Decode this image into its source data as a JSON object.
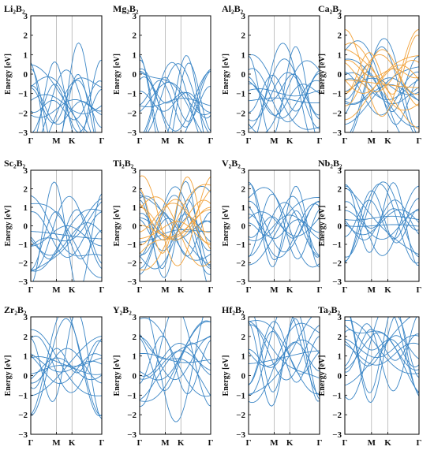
{
  "colors": {
    "series_up": "#3b86c6",
    "series_down": "#f2a23a"
  },
  "chart_data": [
    {
      "type": "line",
      "title": "Li₂B₂",
      "ylabel": "Energy [eV]",
      "ylim": [
        -3,
        3
      ],
      "yticks": [
        "3",
        "2",
        "1",
        "0",
        "-1",
        "-2",
        "-3"
      ],
      "xticks": [
        "Γ",
        "M",
        "K",
        "Γ"
      ],
      "grid": false,
      "spin_polarized": false
    },
    {
      "type": "line",
      "title": "Mg₂B₂",
      "ylabel": "Energy [eV]",
      "ylim": [
        -3,
        3
      ],
      "yticks": [
        "3",
        "2",
        "1",
        "0",
        "-1",
        "-2",
        "-3"
      ],
      "xticks": [
        "Γ",
        "M",
        "K",
        "Γ"
      ],
      "grid": false,
      "spin_polarized": false
    },
    {
      "type": "line",
      "title": "Al₂B₂",
      "ylabel": "Energy [eV]",
      "ylim": [
        -3,
        3
      ],
      "yticks": [
        "3",
        "2",
        "1",
        "0",
        "-1",
        "-2",
        "-3"
      ],
      "xticks": [
        "Γ",
        "M",
        "K",
        "Γ"
      ],
      "grid": false,
      "spin_polarized": false
    },
    {
      "type": "line",
      "title": "Ca₂B₂",
      "ylabel": "Energy [eV]",
      "ylim": [
        -3,
        3
      ],
      "yticks": [
        "3",
        "2",
        "1",
        "0",
        "-1",
        "-2",
        "-3"
      ],
      "xticks": [
        "Γ",
        "M",
        "K",
        "Γ"
      ],
      "grid": false,
      "spin_polarized": true
    },
    {
      "type": "line",
      "title": "Sc₂B₂",
      "ylabel": "Energy [eV]",
      "ylim": [
        -3,
        3
      ],
      "yticks": [
        "3",
        "2",
        "1",
        "0",
        "-1",
        "-2",
        "-3"
      ],
      "xticks": [
        "Γ",
        "M",
        "K",
        "Γ"
      ],
      "grid": false,
      "spin_polarized": false
    },
    {
      "type": "line",
      "title": "Ti₂B₂",
      "ylabel": "Energy [eV]",
      "ylim": [
        -3,
        3
      ],
      "yticks": [
        "3",
        "2",
        "1",
        "0",
        "-1",
        "-2",
        "-3"
      ],
      "xticks": [
        "Γ",
        "M",
        "K",
        "Γ"
      ],
      "grid": false,
      "spin_polarized": true
    },
    {
      "type": "line",
      "title": "V₂B₂",
      "ylabel": "Energy [eV]",
      "ylim": [
        -3,
        3
      ],
      "yticks": [
        "3",
        "2",
        "1",
        "0",
        "-1",
        "-2",
        "-3"
      ],
      "xticks": [
        "Γ",
        "M",
        "K",
        "Γ"
      ],
      "grid": false,
      "spin_polarized": false
    },
    {
      "type": "line",
      "title": "Nb₂B₂",
      "ylabel": "Energy [eV]",
      "ylim": [
        -3,
        3
      ],
      "yticks": [
        "3",
        "2",
        "1",
        "0",
        "-1",
        "-2",
        "-3"
      ],
      "xticks": [
        "Γ",
        "M",
        "K",
        "Γ"
      ],
      "grid": false,
      "spin_polarized": false
    },
    {
      "type": "line",
      "title": "Zr₂B₂",
      "ylabel": "Energy [eV]",
      "ylim": [
        -3,
        3
      ],
      "yticks": [
        "3",
        "2",
        "1",
        "0",
        "-1",
        "-2",
        "-3"
      ],
      "xticks": [
        "Γ",
        "M",
        "K",
        "Γ"
      ],
      "grid": false,
      "spin_polarized": false
    },
    {
      "type": "line",
      "title": "Y₂B₂",
      "ylabel": "Energy [eV]",
      "ylim": [
        -3,
        3
      ],
      "yticks": [
        "3",
        "2",
        "1",
        "0",
        "-1",
        "-2",
        "-3"
      ],
      "xticks": [
        "Γ",
        "M",
        "K",
        "Γ"
      ],
      "grid": false,
      "spin_polarized": false
    },
    {
      "type": "line",
      "title": "Hf₂B₂",
      "ylabel": "Energy [eV]",
      "ylim": [
        -3,
        3
      ],
      "yticks": [
        "3",
        "2",
        "1",
        "0",
        "-1",
        "-2",
        "-3"
      ],
      "xticks": [
        "Γ",
        "M",
        "K",
        "Γ"
      ],
      "grid": false,
      "spin_polarized": false
    },
    {
      "type": "line",
      "title": "Ta₂B₂",
      "ylabel": "Energy [eV]",
      "ylim": [
        -3,
        3
      ],
      "yticks": [
        "3",
        "2",
        "1",
        "0",
        "-1",
        "-2",
        "-3"
      ],
      "xticks": [
        "Γ",
        "M",
        "K",
        "Γ"
      ],
      "grid": false,
      "spin_polarized": false
    }
  ]
}
